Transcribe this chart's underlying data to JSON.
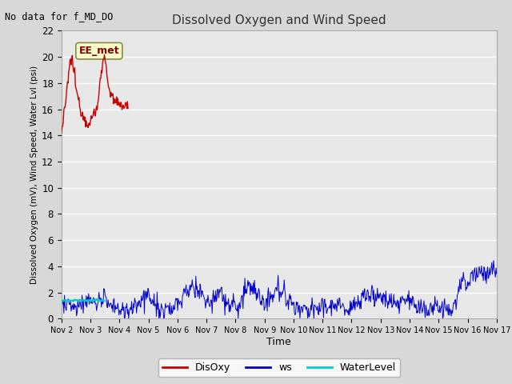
{
  "title": "Dissolved Oxygen and Wind Speed",
  "ylabel": "Dissolved Oxygen (mV), Wind Speed, Water Lvl (psi)",
  "xlabel": "Time",
  "top_label": "No data for f_MD_DO",
  "annotation_box": "EE_met",
  "ylim": [
    0,
    22
  ],
  "yticks": [
    0,
    2,
    4,
    6,
    8,
    10,
    12,
    14,
    16,
    18,
    20,
    22
  ],
  "fig_bg_color": "#d8d8d8",
  "plot_bg_color": "#e8e8e8",
  "grid_color": "#ffffff",
  "disoxy_color": "#cc0000",
  "ws_color": "#0000cc",
  "wl_color": "#00cccc",
  "xtick_labels": [
    "Nov 2",
    "Nov 3",
    "Nov 4",
    "Nov 5",
    "Nov 6",
    "Nov 7",
    "Nov 8",
    "Nov 9",
    "Nov 10",
    "Nov 11",
    "Nov 12",
    "Nov 13",
    "Nov 14",
    "Nov 15",
    "Nov 16",
    "Nov 17"
  ],
  "legend_labels": [
    "DisOxy",
    "ws",
    "WaterLevel"
  ]
}
